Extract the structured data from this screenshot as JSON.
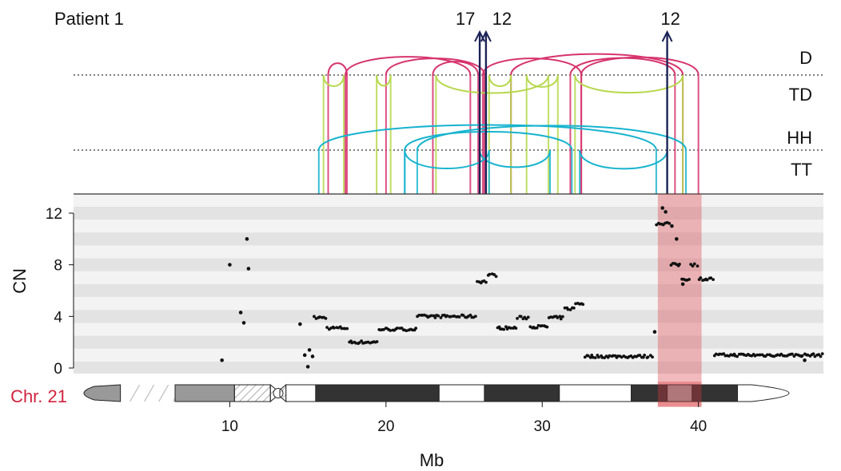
{
  "chart_data": {
    "type": "scatter",
    "title": "Patient 1",
    "xlabel": "Mb",
    "ylabel": "CN",
    "xlim": [
      0,
      48
    ],
    "ylim": [
      0,
      13
    ],
    "x_ticks": [
      10,
      20,
      30,
      40
    ],
    "y_ticks": [
      0,
      4,
      8,
      12
    ],
    "sv_tracks": [
      "D",
      "TD",
      "HH",
      "TT"
    ],
    "chromosome_label": "Chr. 21",
    "translocations": [
      {
        "label": "17",
        "x": 26.0
      },
      {
        "label": "12",
        "x": 26.4
      },
      {
        "label": "12",
        "x": 38.0
      }
    ],
    "highlight_region": [
      37.4,
      40.2
    ],
    "colors": {
      "deletion": "#d6336c",
      "tandem_dup": "#b5d84a",
      "head_to_head": "#17b3cf",
      "tail_to_tail": "#17b3cf",
      "translocation": "#1b2356",
      "highlight": "#d9393e",
      "chromosome_label": "#d1243f",
      "points": "#111111",
      "band_dark": "#333333",
      "band_grey": "#999999"
    },
    "cn_segments": [
      {
        "x0": 15.4,
        "x1": 16.2,
        "y": 3.9
      },
      {
        "x0": 16.2,
        "x1": 17.6,
        "y": 3.1
      },
      {
        "x0": 17.6,
        "x1": 19.5,
        "y": 2.0
      },
      {
        "x0": 19.5,
        "x1": 20.6,
        "y": 3.0
      },
      {
        "x0": 20.6,
        "x1": 22.0,
        "y": 3.0
      },
      {
        "x0": 22.0,
        "x1": 25.8,
        "y": 4.0
      },
      {
        "x0": 25.8,
        "x1": 26.5,
        "y": 6.7
      },
      {
        "x0": 26.5,
        "x1": 27.1,
        "y": 7.2
      },
      {
        "x0": 27.1,
        "x1": 28.4,
        "y": 3.1
      },
      {
        "x0": 28.4,
        "x1": 29.2,
        "y": 3.9
      },
      {
        "x0": 29.2,
        "x1": 30.4,
        "y": 3.2
      },
      {
        "x0": 30.4,
        "x1": 31.4,
        "y": 3.9
      },
      {
        "x0": 31.4,
        "x1": 32.1,
        "y": 4.6
      },
      {
        "x0": 32.1,
        "x1": 32.7,
        "y": 5.0
      },
      {
        "x0": 32.7,
        "x1": 37.1,
        "y": 0.9
      },
      {
        "x0": 37.3,
        "x1": 38.2,
        "y": 11.2
      },
      {
        "x0": 38.2,
        "x1": 38.9,
        "y": 8.0
      },
      {
        "x0": 38.9,
        "x1": 39.5,
        "y": 6.9
      },
      {
        "x0": 39.5,
        "x1": 40.0,
        "y": 8.0
      },
      {
        "x0": 40.0,
        "x1": 41.0,
        "y": 6.9
      },
      {
        "x0": 41.0,
        "x1": 48.0,
        "y": 1.0
      }
    ],
    "cn_points": [
      {
        "x": 9.5,
        "y": 0.6
      },
      {
        "x": 10.0,
        "y": 8.0
      },
      {
        "x": 10.7,
        "y": 4.3
      },
      {
        "x": 10.9,
        "y": 3.5
      },
      {
        "x": 11.1,
        "y": 10.0
      },
      {
        "x": 11.2,
        "y": 7.7
      },
      {
        "x": 14.5,
        "y": 3.4
      },
      {
        "x": 14.8,
        "y": 1.0
      },
      {
        "x": 15.0,
        "y": 0.1
      },
      {
        "x": 15.1,
        "y": 1.4
      },
      {
        "x": 15.3,
        "y": 0.9
      },
      {
        "x": 46.8,
        "y": 0.6
      },
      {
        "x": 37.7,
        "y": 12.4
      },
      {
        "x": 37.9,
        "y": 12.1
      },
      {
        "x": 38.3,
        "y": 11.0
      },
      {
        "x": 38.6,
        "y": 10.0
      },
      {
        "x": 39.0,
        "y": 6.5
      },
      {
        "x": 37.2,
        "y": 2.8
      }
    ],
    "sv_calls": [
      {
        "type": "deletion",
        "x1": 16.3,
        "x2": 17.5
      },
      {
        "type": "deletion",
        "x1": 17.4,
        "x2": 25.4
      },
      {
        "type": "deletion",
        "x1": 20.0,
        "x2": 26.3
      },
      {
        "type": "deletion",
        "x1": 23.0,
        "x2": 25.9
      },
      {
        "type": "deletion",
        "x1": 26.2,
        "x2": 32.5
      },
      {
        "type": "deletion",
        "x1": 31.8,
        "x2": 38.5
      },
      {
        "type": "deletion",
        "x1": 32.5,
        "x2": 40.0
      },
      {
        "type": "deletion",
        "x1": 28.0,
        "x2": 39.0
      },
      {
        "type": "tandem_dup",
        "x1": 16.0,
        "x2": 17.3
      },
      {
        "type": "tandem_dup",
        "x1": 19.4,
        "x2": 20.3
      },
      {
        "type": "tandem_dup",
        "x1": 23.2,
        "x2": 30.4
      },
      {
        "type": "tandem_dup",
        "x1": 26.6,
        "x2": 28.0
      },
      {
        "type": "tandem_dup",
        "x1": 29.0,
        "x2": 31.0
      },
      {
        "type": "tandem_dup",
        "x1": 32.1,
        "x2": 39.0
      },
      {
        "type": "head_to_head",
        "x1": 15.7,
        "x2": 37.3
      },
      {
        "type": "head_to_head",
        "x1": 21.2,
        "x2": 31.9
      },
      {
        "type": "head_to_head",
        "x1": 22.0,
        "x2": 39.2
      },
      {
        "type": "tail_to_tail",
        "x1": 21.2,
        "x2": 26.6
      },
      {
        "type": "tail_to_tail",
        "x1": 26.0,
        "x2": 30.5
      },
      {
        "type": "tail_to_tail",
        "x1": 32.4,
        "x2": 38.0
      }
    ],
    "ideogram_bands": [
      {
        "x0": 0.0,
        "x1": 3.0,
        "kind": "acen_p"
      },
      {
        "x0": 3.0,
        "x1": 6.5,
        "kind": "gap"
      },
      {
        "x0": 6.5,
        "x1": 10.3,
        "kind": "grey"
      },
      {
        "x0": 10.3,
        "x1": 12.6,
        "kind": "stalk"
      },
      {
        "x0": 12.6,
        "x1": 13.6,
        "kind": "centromere"
      },
      {
        "x0": 13.6,
        "x1": 15.5,
        "kind": "white"
      },
      {
        "x0": 15.5,
        "x1": 23.4,
        "kind": "dark"
      },
      {
        "x0": 23.4,
        "x1": 26.3,
        "kind": "white"
      },
      {
        "x0": 26.3,
        "x1": 31.1,
        "kind": "dark"
      },
      {
        "x0": 31.1,
        "x1": 35.7,
        "kind": "white"
      },
      {
        "x0": 35.7,
        "x1": 38.0,
        "kind": "dark"
      },
      {
        "x0": 38.0,
        "x1": 39.6,
        "kind": "grey"
      },
      {
        "x0": 39.6,
        "x1": 42.5,
        "kind": "dark"
      },
      {
        "x0": 42.5,
        "x1": 48.0,
        "kind": "white_end"
      }
    ]
  }
}
